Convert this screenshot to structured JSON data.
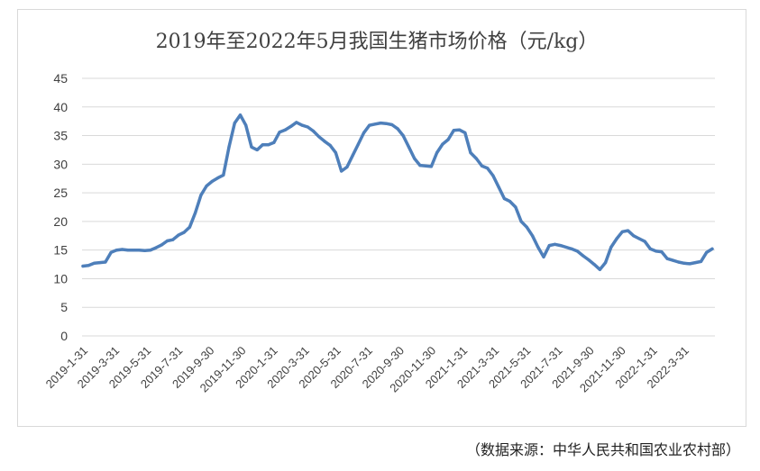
{
  "chart_data": {
    "type": "line",
    "title": "2019年至2022年5月我国生猪市场价格（元/kg）",
    "xlabel": "",
    "ylabel": "",
    "ylim": [
      0,
      45
    ],
    "yticks": [
      "0",
      "5",
      "10",
      "15",
      "20",
      "25",
      "30",
      "35",
      "40",
      "45"
    ],
    "xticks": [
      "2019-1-31",
      "2019-3-31",
      "2019-5-31",
      "2019-7-31",
      "2019-9-30",
      "2019-11-30",
      "2020-1-31",
      "2020-3-31",
      "2020-5-31",
      "2020-7-31",
      "2020-9-30",
      "2020-11-30",
      "2021-1-31",
      "2021-3-31",
      "2021-5-31",
      "2021-7-31",
      "2021-9-30",
      "2021-11-30",
      "2022-1-31",
      "2022-3-31"
    ],
    "grid": true,
    "legend": "none",
    "line_color": "#4e7fba",
    "series": [
      {
        "x_start": "2019-1-31",
        "x_end": "2022-5-31",
        "values": [
          12.2,
          12.3,
          12.7,
          12.8,
          12.9,
          14.6,
          15.0,
          15.1,
          15.0,
          15.0,
          15.0,
          14.9,
          15.0,
          15.4,
          15.9,
          16.6,
          16.8,
          17.6,
          18.1,
          19.0,
          21.5,
          24.6,
          26.2,
          27.0,
          27.6,
          28.1,
          33.0,
          37.2,
          38.6,
          36.8,
          33.0,
          32.5,
          33.4,
          33.4,
          33.8,
          35.6,
          36.0,
          36.6,
          37.3,
          36.8,
          36.5,
          35.8,
          34.8,
          34.0,
          33.3,
          32.0,
          28.8,
          29.5,
          31.5,
          33.5,
          35.5,
          36.8,
          37.0,
          37.2,
          37.1,
          36.9,
          36.2,
          35.0,
          33.0,
          31.0,
          29.8,
          29.7,
          29.6,
          32.0,
          33.5,
          34.3,
          35.9,
          36.0,
          35.5,
          32.0,
          31.0,
          29.7,
          29.3,
          28.0,
          26.0,
          24.0,
          23.5,
          22.5,
          20.0,
          19.0,
          17.5,
          15.5,
          13.8,
          15.8,
          16.0,
          15.8,
          15.5,
          15.2,
          14.8,
          14.0,
          13.3,
          12.5,
          11.6,
          12.8,
          15.5,
          17.0,
          18.2,
          18.4,
          17.5,
          17.0,
          16.5,
          15.2,
          14.8,
          14.7,
          13.5,
          13.2,
          12.9,
          12.7,
          12.6,
          12.8,
          13.0,
          14.6,
          15.2
        ]
      }
    ]
  },
  "source_note": "（数据来源：中华人民共和国农业农村部）"
}
